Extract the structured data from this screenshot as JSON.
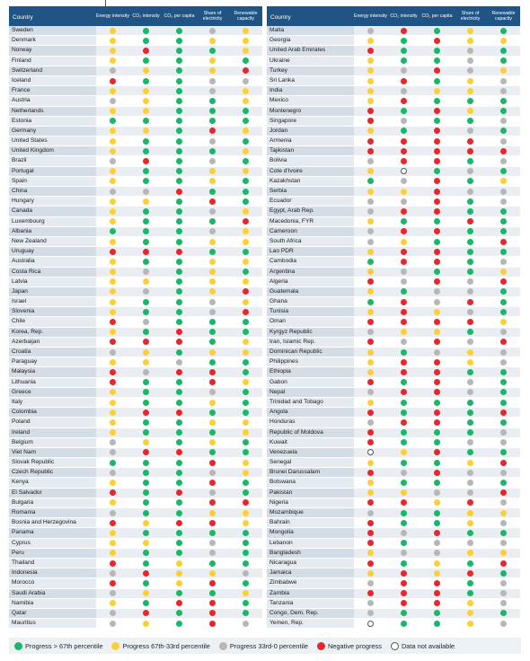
{
  "headers": {
    "country": "Country",
    "cols": [
      "Energy intensity",
      "CO₂ intensity",
      "CO₂ per capita",
      "Share of electricity",
      "Renewable capacity"
    ]
  },
  "legend": [
    {
      "code": "g",
      "label": "Progress > 67th percentile"
    },
    {
      "code": "y",
      "label": "Progress 67th-33rd percentile"
    },
    {
      "code": "a",
      "label": "Progress 33rd-0 percentile"
    },
    {
      "code": "r",
      "label": "Negative progress"
    },
    {
      "code": "n",
      "label": "Data not available"
    }
  ],
  "colors": {
    "g": "#19b76a",
    "y": "#fcd034",
    "a": "#b7b7b7",
    "r": "#e8262c",
    "header": "#1f5485"
  },
  "left": [
    {
      "country": "Sweden",
      "dots": [
        "y",
        "g",
        "g",
        "a",
        "y"
      ]
    },
    {
      "country": "Denmark",
      "dots": [
        "y",
        "g",
        "g",
        "y",
        "y"
      ]
    },
    {
      "country": "Norway",
      "dots": [
        "y",
        "r",
        "g",
        "g",
        "y"
      ]
    },
    {
      "country": "Finland",
      "dots": [
        "y",
        "g",
        "g",
        "y",
        "g"
      ]
    },
    {
      "country": "Switzerland",
      "dots": [
        "a",
        "y",
        "g",
        "y",
        "r"
      ]
    },
    {
      "country": "Iceland",
      "dots": [
        "r",
        "g",
        "g",
        "a",
        "a"
      ]
    },
    {
      "country": "France",
      "dots": [
        "y",
        "y",
        "g",
        "a",
        "y"
      ]
    },
    {
      "country": "Austria",
      "dots": [
        "a",
        "y",
        "g",
        "g",
        "y"
      ]
    },
    {
      "country": "Netherlands",
      "dots": [
        "y",
        "y",
        "g",
        "g",
        "g"
      ]
    },
    {
      "country": "Estonia",
      "dots": [
        "g",
        "g",
        "g",
        "g",
        "g"
      ]
    },
    {
      "country": "Germany",
      "dots": [
        "y",
        "y",
        "g",
        "r",
        "y"
      ]
    },
    {
      "country": "United States",
      "dots": [
        "y",
        "g",
        "g",
        "a",
        "g"
      ]
    },
    {
      "country": "United Kingdom",
      "dots": [
        "y",
        "g",
        "g",
        "g",
        "y"
      ]
    },
    {
      "country": "Brazil",
      "dots": [
        "a",
        "r",
        "g",
        "a",
        "g"
      ]
    },
    {
      "country": "Portugal",
      "dots": [
        "y",
        "g",
        "g",
        "y",
        "y"
      ]
    },
    {
      "country": "Spain",
      "dots": [
        "y",
        "g",
        "g",
        "y",
        "g"
      ]
    },
    {
      "country": "China",
      "dots": [
        "a",
        "a",
        "r",
        "g",
        "g"
      ]
    },
    {
      "country": "Hungary",
      "dots": [
        "y",
        "y",
        "g",
        "r",
        "g"
      ]
    },
    {
      "country": "Canada",
      "dots": [
        "y",
        "g",
        "g",
        "a",
        "y"
      ]
    },
    {
      "country": "Luxembourg",
      "dots": [
        "y",
        "g",
        "g",
        "g",
        "r"
      ]
    },
    {
      "country": "Albania",
      "dots": [
        "g",
        "g",
        "g",
        "a",
        "y"
      ]
    },
    {
      "country": "New Zealand",
      "dots": [
        "y",
        "g",
        "g",
        "y",
        "y"
      ]
    },
    {
      "country": "Uruguay",
      "dots": [
        "r",
        "r",
        "r",
        "g",
        "g"
      ]
    },
    {
      "country": "Australia",
      "dots": [
        "y",
        "g",
        "g",
        "y",
        "y"
      ]
    },
    {
      "country": "Costa Rica",
      "dots": [
        "y",
        "a",
        "g",
        "y",
        "g"
      ]
    },
    {
      "country": "Latvia",
      "dots": [
        "y",
        "y",
        "g",
        "y",
        "y"
      ]
    },
    {
      "country": "Japan",
      "dots": [
        "y",
        "a",
        "g",
        "y",
        "r"
      ]
    },
    {
      "country": "Israel",
      "dots": [
        "y",
        "g",
        "g",
        "a",
        "y"
      ]
    },
    {
      "country": "Slovenia",
      "dots": [
        "y",
        "g",
        "g",
        "a",
        "r"
      ]
    },
    {
      "country": "Chile",
      "dots": [
        "r",
        "a",
        "g",
        "g",
        "g"
      ]
    },
    {
      "country": "Korea, Rep.",
      "dots": [
        "y",
        "g",
        "r",
        "g",
        "g"
      ]
    },
    {
      "country": "Azerbaijan",
      "dots": [
        "r",
        "r",
        "r",
        "g",
        "y"
      ]
    },
    {
      "country": "Croatia",
      "dots": [
        "a",
        "y",
        "g",
        "y",
        "y"
      ]
    },
    {
      "country": "Paraguay",
      "dots": [
        "y",
        "y",
        "a",
        "g",
        "g"
      ]
    },
    {
      "country": "Malaysia",
      "dots": [
        "r",
        "a",
        "r",
        "r",
        "g"
      ]
    },
    {
      "country": "Lithuania",
      "dots": [
        "r",
        "g",
        "g",
        "r",
        "y"
      ]
    },
    {
      "country": "Greece",
      "dots": [
        "y",
        "g",
        "g",
        "a",
        "g"
      ]
    },
    {
      "country": "Italy",
      "dots": [
        "y",
        "g",
        "g",
        "y",
        "g"
      ]
    },
    {
      "country": "Colombia",
      "dots": [
        "y",
        "r",
        "r",
        "g",
        "g"
      ]
    },
    {
      "country": "Poland",
      "dots": [
        "y",
        "g",
        "g",
        "y",
        "y"
      ]
    },
    {
      "country": "Ireland",
      "dots": [
        "y",
        "g",
        "g",
        "g",
        "y"
      ]
    },
    {
      "country": "Belgium",
      "dots": [
        "a",
        "y",
        "g",
        "y",
        "g"
      ]
    },
    {
      "country": "Viet Nam",
      "dots": [
        "a",
        "r",
        "r",
        "g",
        "g"
      ]
    },
    {
      "country": "Slovak Republic",
      "dots": [
        "g",
        "g",
        "g",
        "r",
        "y"
      ]
    },
    {
      "country": "Czech Republic",
      "dots": [
        "a",
        "g",
        "g",
        "a",
        "y"
      ]
    },
    {
      "country": "Kenya",
      "dots": [
        "y",
        "g",
        "g",
        "r",
        "g"
      ]
    },
    {
      "country": "El Salvador",
      "dots": [
        "r",
        "g",
        "r",
        "a",
        "g"
      ]
    },
    {
      "country": "Bulgaria",
      "dots": [
        "y",
        "g",
        "g",
        "r",
        "r"
      ]
    },
    {
      "country": "Romania",
      "dots": [
        "a",
        "g",
        "g",
        "y",
        "y"
      ]
    },
    {
      "country": "Bosnia and Herzegovina",
      "dots": [
        "r",
        "y",
        "r",
        "r",
        "y"
      ]
    },
    {
      "country": "Panama",
      "dots": [
        "y",
        "g",
        "g",
        "g",
        "g"
      ]
    },
    {
      "country": "Cyprus",
      "dots": [
        "y",
        "y",
        "g",
        "a",
        "g"
      ]
    },
    {
      "country": "Peru",
      "dots": [
        "y",
        "g",
        "g",
        "a",
        "g"
      ]
    },
    {
      "country": "Thailand",
      "dots": [
        "r",
        "g",
        "y",
        "g",
        "g"
      ]
    },
    {
      "country": "Indonesia",
      "dots": [
        "a",
        "r",
        "y",
        "y",
        "a"
      ]
    },
    {
      "country": "Morocco",
      "dots": [
        "r",
        "g",
        "y",
        "r",
        "g"
      ]
    },
    {
      "country": "Saudi Arabia",
      "dots": [
        "a",
        "y",
        "g",
        "g",
        "y"
      ]
    },
    {
      "country": "Namibia",
      "dots": [
        "y",
        "g",
        "r",
        "r",
        "g"
      ]
    },
    {
      "country": "Qatar",
      "dots": [
        "a",
        "r",
        "g",
        "r",
        "g"
      ]
    },
    {
      "country": "Mauritius",
      "dots": [
        "a",
        "y",
        "g",
        "r",
        "a"
      ]
    }
  ],
  "right": [
    {
      "country": "Malta",
      "dots": [
        "a",
        "r",
        "g",
        "y",
        "g"
      ]
    },
    {
      "country": "Georgia",
      "dots": [
        "y",
        "g",
        "r",
        "y",
        "y"
      ]
    },
    {
      "country": "United Arab Emirates",
      "dots": [
        "r",
        "g",
        "g",
        "a",
        "g"
      ]
    },
    {
      "country": "Ukraine",
      "dots": [
        "y",
        "g",
        "g",
        "a",
        "g"
      ]
    },
    {
      "country": "Turkey",
      "dots": [
        "y",
        "a",
        "r",
        "a",
        "y"
      ]
    },
    {
      "country": "Sri Lanka",
      "dots": [
        "y",
        "r",
        "g",
        "y",
        "a"
      ]
    },
    {
      "country": "India",
      "dots": [
        "y",
        "a",
        "y",
        "y",
        "a"
      ]
    },
    {
      "country": "Mexico",
      "dots": [
        "y",
        "r",
        "g",
        "g",
        "g"
      ]
    },
    {
      "country": "Montenegro",
      "dots": [
        "r",
        "g",
        "r",
        "y",
        "g"
      ]
    },
    {
      "country": "Singapore",
      "dots": [
        "r",
        "a",
        "g",
        "g",
        "a"
      ]
    },
    {
      "country": "Jordan",
      "dots": [
        "y",
        "g",
        "r",
        "a",
        "g"
      ]
    },
    {
      "country": "Armenia",
      "dots": [
        "r",
        "r",
        "r",
        "r",
        "a"
      ]
    },
    {
      "country": "Tajikistan",
      "dots": [
        "r",
        "r",
        "r",
        "r",
        "r"
      ]
    },
    {
      "country": "Bolivia",
      "dots": [
        "a",
        "r",
        "r",
        "g",
        "a"
      ]
    },
    {
      "country": "Cote d'Ivoire",
      "dots": [
        "y",
        "n",
        "g",
        "a",
        "g"
      ]
    },
    {
      "country": "Kazakhstan",
      "dots": [
        "g",
        "a",
        "r",
        "g",
        "y"
      ]
    },
    {
      "country": "Serbia",
      "dots": [
        "y",
        "y",
        "r",
        "a",
        "a"
      ]
    },
    {
      "country": "Ecuador",
      "dots": [
        "a",
        "a",
        "r",
        "g",
        "a"
      ]
    },
    {
      "country": "Egypt, Arab Rep.",
      "dots": [
        "a",
        "r",
        "r",
        "g",
        "g"
      ]
    },
    {
      "country": "Macedonia, FYR",
      "dots": [
        "y",
        "g",
        "g",
        "r",
        "g"
      ]
    },
    {
      "country": "Cameroon",
      "dots": [
        "a",
        "r",
        "r",
        "g",
        "g"
      ]
    },
    {
      "country": "South Africa",
      "dots": [
        "a",
        "y",
        "g",
        "g",
        "r"
      ]
    },
    {
      "country": "Lao PDR",
      "dots": [
        "y",
        "r",
        "r",
        "g",
        "g"
      ]
    },
    {
      "country": "Cambodia",
      "dots": [
        "g",
        "r",
        "r",
        "g",
        "a"
      ]
    },
    {
      "country": "Argentina",
      "dots": [
        "y",
        "a",
        "g",
        "g",
        "y"
      ]
    },
    {
      "country": "Algeria",
      "dots": [
        "r",
        "a",
        "r",
        "a",
        "r"
      ]
    },
    {
      "country": "Guatemala",
      "dots": [
        "y",
        "g",
        "a",
        "a",
        "g"
      ]
    },
    {
      "country": "Ghana",
      "dots": [
        "g",
        "r",
        "a",
        "r",
        "g"
      ]
    },
    {
      "country": "Tunisia",
      "dots": [
        "y",
        "r",
        "y",
        "a",
        "g"
      ]
    },
    {
      "country": "Oman",
      "dots": [
        "r",
        "r",
        "r",
        "r",
        "y"
      ]
    },
    {
      "country": "Kyrgyz Republic",
      "dots": [
        "a",
        "y",
        "y",
        "g",
        "a"
      ]
    },
    {
      "country": "Iran, Islamic Rep.",
      "dots": [
        "r",
        "a",
        "r",
        "a",
        "r"
      ]
    },
    {
      "country": "Dominican Republic",
      "dots": [
        "y",
        "g",
        "a",
        "y",
        "a"
      ]
    },
    {
      "country": "Philippines",
      "dots": [
        "y",
        "r",
        "r",
        "y",
        "a"
      ]
    },
    {
      "country": "Ethiopia",
      "dots": [
        "y",
        "r",
        "r",
        "g",
        "g"
      ]
    },
    {
      "country": "Gabon",
      "dots": [
        "r",
        "g",
        "r",
        "a",
        "g"
      ]
    },
    {
      "country": "Nepal",
      "dots": [
        "a",
        "r",
        "r",
        "a",
        "g"
      ]
    },
    {
      "country": "Trinidad and Tobago",
      "dots": [
        "y",
        "g",
        "g",
        "g",
        "g"
      ]
    },
    {
      "country": "Angola",
      "dots": [
        "r",
        "g",
        "r",
        "g",
        "r"
      ]
    },
    {
      "country": "Honduras",
      "dots": [
        "a",
        "r",
        "r",
        "g",
        "g"
      ]
    },
    {
      "country": "Republic of Moldova",
      "dots": [
        "r",
        "g",
        "g",
        "g",
        "a"
      ]
    },
    {
      "country": "Kuwait",
      "dots": [
        "r",
        "g",
        "g",
        "a",
        "a"
      ]
    },
    {
      "country": "Venezuela",
      "dots": [
        "n",
        "y",
        "r",
        "g",
        "g"
      ]
    },
    {
      "country": "Senegal",
      "dots": [
        "y",
        "g",
        "g",
        "y",
        "r"
      ]
    },
    {
      "country": "Brunei Darussalam",
      "dots": [
        "r",
        "a",
        "r",
        "a",
        "a"
      ]
    },
    {
      "country": "Botswana",
      "dots": [
        "y",
        "g",
        "g",
        "a",
        "g"
      ]
    },
    {
      "country": "Pakistan",
      "dots": [
        "y",
        "y",
        "a",
        "a",
        "r"
      ]
    },
    {
      "country": "Nigeria",
      "dots": [
        "r",
        "r",
        "y",
        "r",
        "a"
      ]
    },
    {
      "country": "Mozambique",
      "dots": [
        "a",
        "g",
        "g",
        "y",
        "y"
      ]
    },
    {
      "country": "Bahrain",
      "dots": [
        "r",
        "g",
        "g",
        "y",
        "a"
      ]
    },
    {
      "country": "Mongolia",
      "dots": [
        "r",
        "a",
        "r",
        "g",
        "g"
      ]
    },
    {
      "country": "Lebanon",
      "dots": [
        "r",
        "g",
        "a",
        "a",
        "a"
      ]
    },
    {
      "country": "Bangladesh",
      "dots": [
        "y",
        "a",
        "a",
        "y",
        "y"
      ]
    },
    {
      "country": "Nicaragua",
      "dots": [
        "r",
        "g",
        "y",
        "g",
        "r"
      ]
    },
    {
      "country": "Jamaica",
      "dots": [
        "y",
        "r",
        "y",
        "r",
        "g"
      ]
    },
    {
      "country": "Zimbabwe",
      "dots": [
        "a",
        "r",
        "r",
        "g",
        "a"
      ]
    },
    {
      "country": "Zambia",
      "dots": [
        "r",
        "r",
        "r",
        "g",
        "a"
      ]
    },
    {
      "country": "Tanzania",
      "dots": [
        "a",
        "r",
        "r",
        "y",
        "a"
      ]
    },
    {
      "country": "Congo, Dem. Rep.",
      "dots": [
        "a",
        "g",
        "g",
        "y",
        "g"
      ]
    },
    {
      "country": "Yemen, Rep.",
      "dots": [
        "n",
        "g",
        "g",
        "y",
        "a"
      ]
    }
  ]
}
